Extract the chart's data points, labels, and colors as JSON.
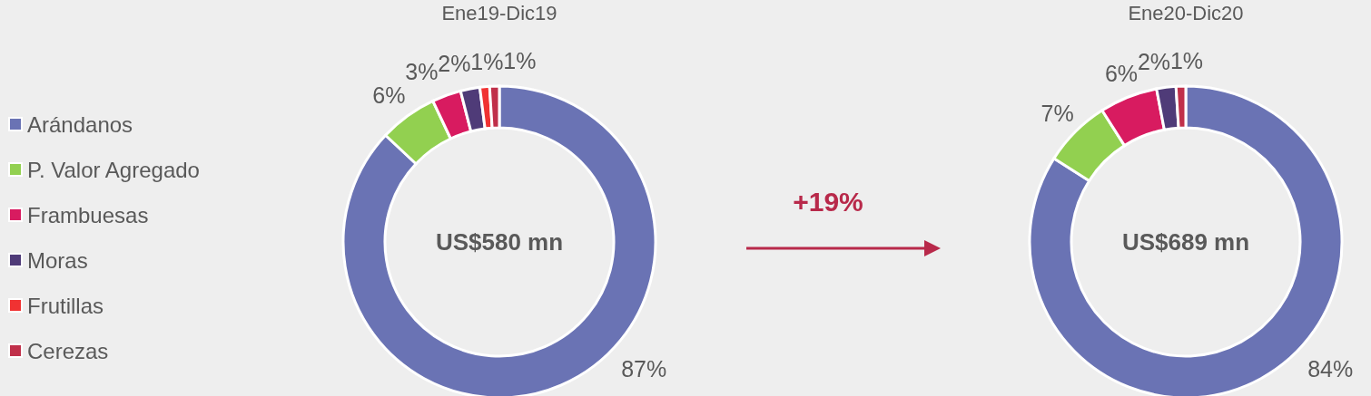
{
  "chart_data": [
    {
      "type": "donut",
      "title": "Ene19-Dic19",
      "categories": [
        "Arándanos",
        "P. Valor Agregado",
        "Frambuesas",
        "Moras",
        "Frutillas",
        "Cerezas"
      ],
      "values": [
        87,
        6,
        3,
        2,
        1,
        1
      ],
      "value_labels": [
        "87%",
        "6%",
        "3%",
        "2%",
        "1%",
        "1%"
      ],
      "colors": [
        "#6a73b4",
        "#92d050",
        "#d81b60",
        "#4f3b78",
        "#f03232",
        "#c0304a"
      ],
      "legend": "left",
      "annotations": [
        "US$580 mn",
        "+19%"
      ]
    },
    {
      "type": "donut",
      "title": "Ene20-Dic20",
      "values": [
        84,
        7,
        6,
        2,
        null,
        1
      ],
      "value_labels": [
        "84%",
        "7%",
        "6%",
        "2%",
        null,
        "1%"
      ],
      "colors": [
        "#6a73b4",
        "#92d050",
        "#d81b60",
        "#4f3b78",
        "#f03232",
        "#c0304a"
      ],
      "annotations": [
        "US$689 mn"
      ]
    }
  ]
}
